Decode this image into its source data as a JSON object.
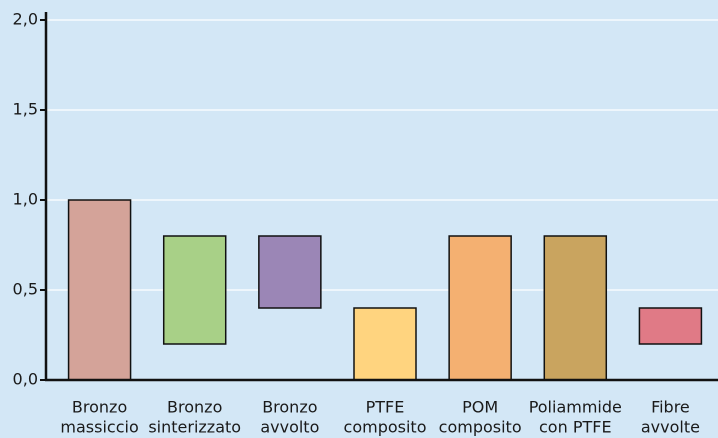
{
  "chart_data": {
    "type": "floating-bar",
    "categories": [
      [
        "Bronzo",
        "massiccio"
      ],
      [
        "Bronzo",
        "sinterizzato"
      ],
      [
        "Bronzo",
        "avvolto"
      ],
      [
        "PTFE",
        "composito"
      ],
      [
        "POM",
        "composito"
      ],
      [
        "Poliammide",
        "con PTFE"
      ],
      [
        "Fibre",
        "avvolte"
      ]
    ],
    "low": [
      0,
      0.2,
      0.4,
      0,
      0,
      0,
      0.2
    ],
    "high": [
      1.0,
      0.8,
      0.8,
      0.4,
      0.8,
      0.8,
      0.4
    ],
    "colors": [
      "#d4a399",
      "#a8d087",
      "#9b86b6",
      "#ffd47f",
      "#f4b071",
      "#c9a45f",
      "#e07a86"
    ],
    "ylim": [
      0,
      2.0
    ],
    "yticks": [
      {
        "value": 0,
        "label": "0,0"
      },
      {
        "value": 0.5,
        "label": "0,5"
      },
      {
        "value": 1.0,
        "label": "1,0"
      },
      {
        "value": 1.5,
        "label": "1,5"
      },
      {
        "value": 2.0,
        "label": "2,0"
      }
    ],
    "grid": true
  }
}
